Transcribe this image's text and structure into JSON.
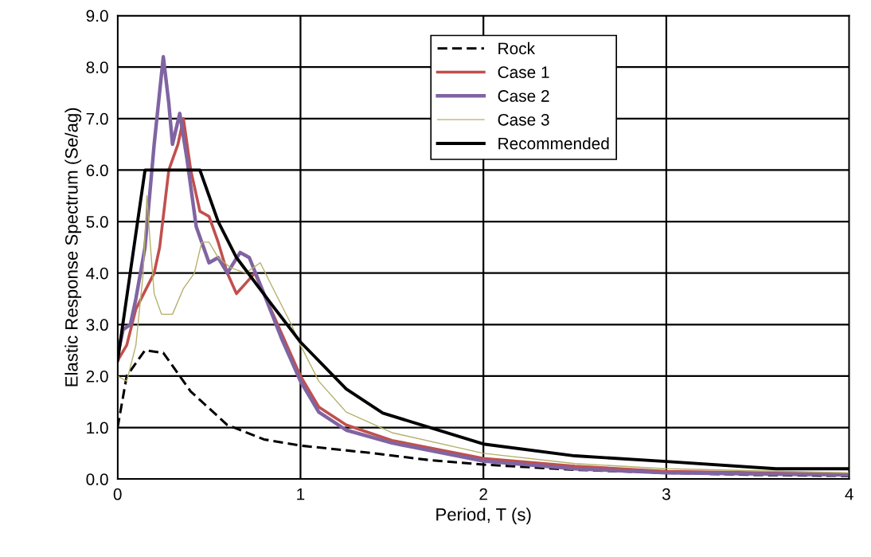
{
  "chart_data": {
    "type": "line",
    "xlabel": "Period, T (s)",
    "ylabel": "Elastic Response Spectrum (Se/ag)",
    "xlim": [
      0,
      4
    ],
    "xticks": [
      0,
      1,
      2,
      3,
      4
    ],
    "ylim": [
      0,
      9
    ],
    "yticks": [
      {
        "value": 0,
        "label": "0.0"
      },
      {
        "value": 1,
        "label": "1.0"
      },
      {
        "value": 2,
        "label": "2.0"
      },
      {
        "value": 3,
        "label": "3.0"
      },
      {
        "value": 4,
        "label": "4.0"
      },
      {
        "value": 5,
        "label": "5.0"
      },
      {
        "value": 6,
        "label": "6.0"
      },
      {
        "value": 7,
        "label": "7.0"
      },
      {
        "value": 8,
        "label": "8.0"
      },
      {
        "value": 9,
        "label": "9.0"
      }
    ],
    "grid": true,
    "legend": "top",
    "marker": "none",
    "series": [
      {
        "name": "Rock",
        "color": "#000000",
        "line_style": "dashed",
        "x": [
          0,
          0.05,
          0.15,
          0.25,
          0.4,
          0.6,
          0.8,
          1.0,
          1.4,
          1.7,
          2.0,
          2.5,
          3.0,
          3.5,
          4.0
        ],
        "values": [
          1.0,
          2.0,
          2.5,
          2.45,
          1.7,
          1.05,
          0.77,
          0.65,
          0.5,
          0.37,
          0.28,
          0.18,
          0.12,
          0.08,
          0.06
        ]
      },
      {
        "name": "Case 1",
        "color": "#c0504d",
        "x": [
          0,
          0.05,
          0.1,
          0.2,
          0.23,
          0.28,
          0.33,
          0.36,
          0.4,
          0.45,
          0.5,
          0.55,
          0.6,
          0.65,
          0.7,
          0.75,
          0.8,
          0.9,
          1.0,
          1.1,
          1.25,
          1.5,
          2.0,
          2.5,
          3.0,
          4.0
        ],
        "values": [
          2.3,
          2.6,
          3.3,
          4.0,
          4.5,
          6.0,
          6.5,
          7.0,
          6.0,
          5.2,
          5.1,
          4.6,
          4.0,
          3.6,
          3.8,
          4.0,
          3.6,
          2.8,
          2.0,
          1.4,
          1.05,
          0.75,
          0.4,
          0.25,
          0.15,
          0.1
        ]
      },
      {
        "name": "Case 2",
        "color": "#8064a2",
        "x": [
          0,
          0.03,
          0.07,
          0.1,
          0.15,
          0.2,
          0.25,
          0.28,
          0.3,
          0.34,
          0.38,
          0.43,
          0.5,
          0.55,
          0.6,
          0.67,
          0.72,
          0.8,
          0.9,
          1.0,
          1.1,
          1.25,
          1.5,
          2.0,
          2.5,
          3.0,
          4.0
        ],
        "values": [
          2.4,
          2.9,
          3.0,
          3.5,
          4.5,
          6.5,
          8.2,
          7.3,
          6.5,
          7.1,
          6.2,
          4.9,
          4.2,
          4.3,
          4.0,
          4.4,
          4.3,
          3.6,
          2.7,
          1.9,
          1.3,
          0.95,
          0.7,
          0.35,
          0.2,
          0.12,
          0.08
        ]
      },
      {
        "name": "Case 3",
        "color": "#b5b06a",
        "x": [
          0,
          0.05,
          0.1,
          0.14,
          0.16,
          0.18,
          0.2,
          0.24,
          0.3,
          0.36,
          0.42,
          0.46,
          0.5,
          0.55,
          0.62,
          0.7,
          0.78,
          0.85,
          0.95,
          1.0,
          1.1,
          1.25,
          1.5,
          2.0,
          2.5,
          3.0,
          4.0
        ],
        "values": [
          2.0,
          1.9,
          2.6,
          4.0,
          5.5,
          4.5,
          3.6,
          3.2,
          3.2,
          3.7,
          4.0,
          4.6,
          4.6,
          4.3,
          4.1,
          4.0,
          4.2,
          3.7,
          3.0,
          2.6,
          1.9,
          1.3,
          0.9,
          0.5,
          0.3,
          0.2,
          0.12
        ]
      },
      {
        "name": "Recommended",
        "color": "#000000",
        "x": [
          0,
          0.15,
          0.45,
          0.55,
          0.65,
          0.84,
          1.0,
          1.25,
          1.45,
          2.0,
          2.5,
          3.0,
          3.6,
          4.0
        ],
        "values": [
          2.3,
          6.0,
          6.0,
          5.0,
          4.3,
          3.4,
          2.66,
          1.75,
          1.28,
          0.68,
          0.45,
          0.34,
          0.2,
          0.2
        ]
      }
    ]
  }
}
